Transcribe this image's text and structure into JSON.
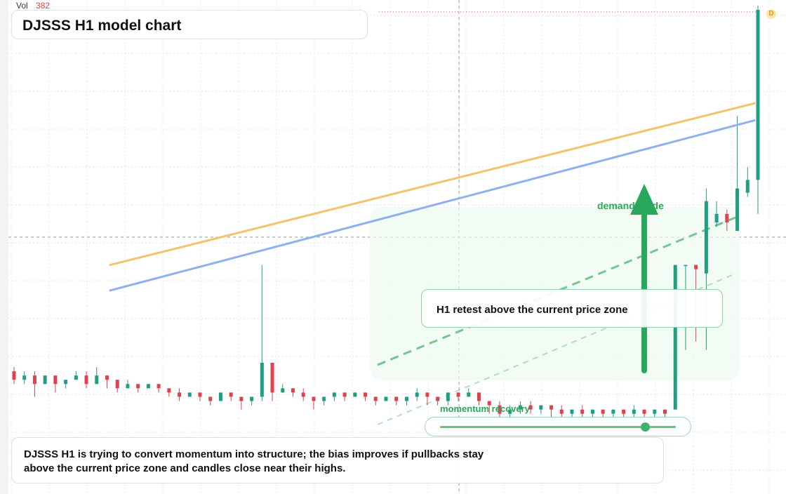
{
  "header": {
    "vol_label": "Vol",
    "vol_value": "382",
    "title": "DJSSS H1 model chart"
  },
  "annotations": {
    "retest": "H1 retest above the current price zone",
    "demand": "demand guide",
    "momentum_label": "momentum recovery",
    "momentum_level": 0.87,
    "note": "DJSSS H1 is trying to convert momentum into structure; the bias improves if pullbacks stay above the current price zone and candles close near their highs.",
    "badge": "D"
  },
  "colors": {
    "up": "#1f9e84",
    "down": "#e0414f",
    "ma_fast": "#f2c46a",
    "ma_slow": "#8fb0ec",
    "demand": "#27a85a",
    "grid": "#e6e6e6"
  },
  "chart_data": {
    "type": "candlestick",
    "title": "DJSSS H1 model chart",
    "xlabel": "",
    "ylabel": "",
    "grid": true,
    "price_range": [
      0,
      100
    ],
    "series": [
      {
        "name": "ohlc",
        "points": [
          [
            15,
            13,
            16,
            12
          ],
          [
            13,
            14,
            15,
            12
          ],
          [
            14,
            12,
            15,
            9
          ],
          [
            12,
            14,
            14,
            12
          ],
          [
            14,
            12,
            14,
            10
          ],
          [
            12,
            13,
            13,
            11
          ],
          [
            13,
            14,
            15,
            13
          ],
          [
            14,
            12,
            15,
            11
          ],
          [
            12,
            14,
            16,
            12
          ],
          [
            14,
            13,
            14,
            11
          ],
          [
            13,
            11,
            13,
            10
          ],
          [
            11,
            12,
            13,
            11
          ],
          [
            12,
            11,
            12,
            10
          ],
          [
            11,
            12,
            12,
            11
          ],
          [
            12,
            11,
            12,
            10
          ],
          [
            11,
            10,
            11,
            9
          ],
          [
            10,
            9,
            11,
            8
          ],
          [
            9,
            10,
            10,
            9
          ],
          [
            10,
            9,
            10,
            8
          ],
          [
            9,
            8,
            9,
            7
          ],
          [
            8,
            10,
            10,
            8
          ],
          [
            10,
            9,
            10,
            8
          ],
          [
            9,
            8,
            9,
            6
          ],
          [
            8,
            9,
            9,
            7
          ],
          [
            9,
            17,
            40,
            8
          ],
          [
            17,
            10,
            17,
            8
          ],
          [
            10,
            11,
            12,
            10
          ],
          [
            11,
            10,
            11,
            9
          ],
          [
            10,
            9,
            11,
            8
          ],
          [
            9,
            8,
            9,
            6
          ],
          [
            8,
            9,
            9,
            7
          ],
          [
            9,
            10,
            10,
            8
          ],
          [
            10,
            9,
            10,
            8
          ],
          [
            9,
            10,
            10,
            9
          ],
          [
            10,
            9,
            10,
            8
          ],
          [
            9,
            8,
            9,
            7
          ],
          [
            8,
            9,
            9,
            8
          ],
          [
            9,
            8,
            9,
            7
          ],
          [
            8,
            9,
            9,
            7
          ],
          [
            9,
            10,
            11,
            8
          ],
          [
            10,
            9,
            10,
            7
          ],
          [
            9,
            8,
            9,
            7
          ],
          [
            8,
            10,
            10,
            7
          ],
          [
            10,
            9,
            10,
            8
          ],
          [
            9,
            10,
            11,
            9
          ],
          [
            10,
            8,
            10,
            7
          ],
          [
            8,
            7,
            8,
            5
          ],
          [
            7,
            5,
            8,
            0
          ],
          [
            5,
            6,
            7,
            4
          ],
          [
            6,
            7,
            8,
            5
          ],
          [
            7,
            6,
            8,
            5
          ],
          [
            6,
            7,
            7,
            5
          ],
          [
            7,
            6,
            7,
            4
          ],
          [
            6,
            5,
            7,
            4
          ],
          [
            5,
            6,
            6,
            4
          ],
          [
            6,
            5,
            7,
            4
          ],
          [
            5,
            6,
            6,
            4
          ],
          [
            6,
            5,
            6,
            3
          ],
          [
            5,
            6,
            6,
            4
          ],
          [
            6,
            5,
            6,
            4
          ],
          [
            5,
            6,
            7,
            4
          ],
          [
            6,
            5,
            6,
            3
          ],
          [
            5,
            6,
            6,
            4
          ],
          [
            6,
            5,
            6,
            4
          ],
          [
            6,
            40,
            40,
            8
          ],
          [
            40,
            40,
            40,
            20
          ],
          [
            40,
            39,
            40,
            22
          ],
          [
            38,
            55,
            58,
            20
          ],
          [
            50,
            52,
            55,
            49
          ],
          [
            52,
            50,
            53,
            48
          ],
          [
            48,
            58,
            75,
            50
          ],
          [
            57,
            60,
            63,
            56
          ],
          [
            60,
            100,
            101,
            52
          ]
        ]
      },
      {
        "name": "MA fast",
        "values": [
          40,
          78
        ]
      },
      {
        "name": "MA slow",
        "values": [
          34,
          74
        ]
      }
    ]
  }
}
